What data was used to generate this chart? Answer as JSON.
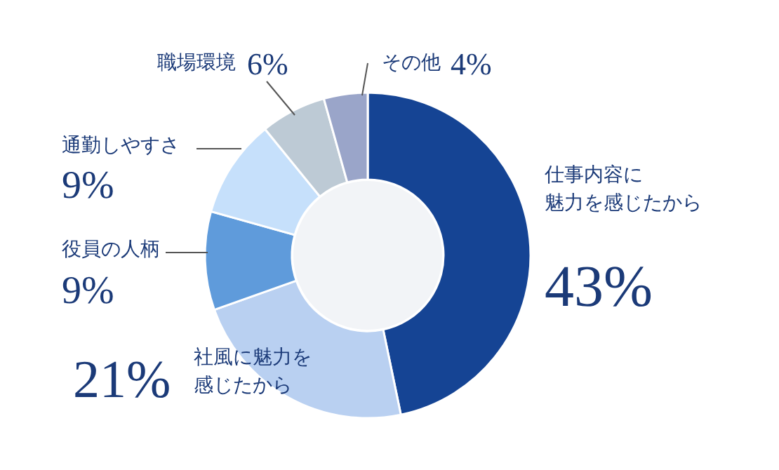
{
  "chart_data": {
    "type": "donut",
    "categories": [
      "仕事内容に魅力を感じたから",
      "社風に魅力を感じたから",
      "役員の人柄",
      "通勤しやすさ",
      "職場環境",
      "その他"
    ],
    "values": [
      43,
      21,
      9,
      9,
      6,
      4
    ],
    "colors": [
      "#154494",
      "#b9d0f1",
      "#5f9bdb",
      "#c6e0fb",
      "#bdcad5",
      "#9aa5c9"
    ],
    "value_labels": [
      "43%",
      "21%",
      "9%",
      "9%",
      "6%",
      "4%"
    ]
  }
}
